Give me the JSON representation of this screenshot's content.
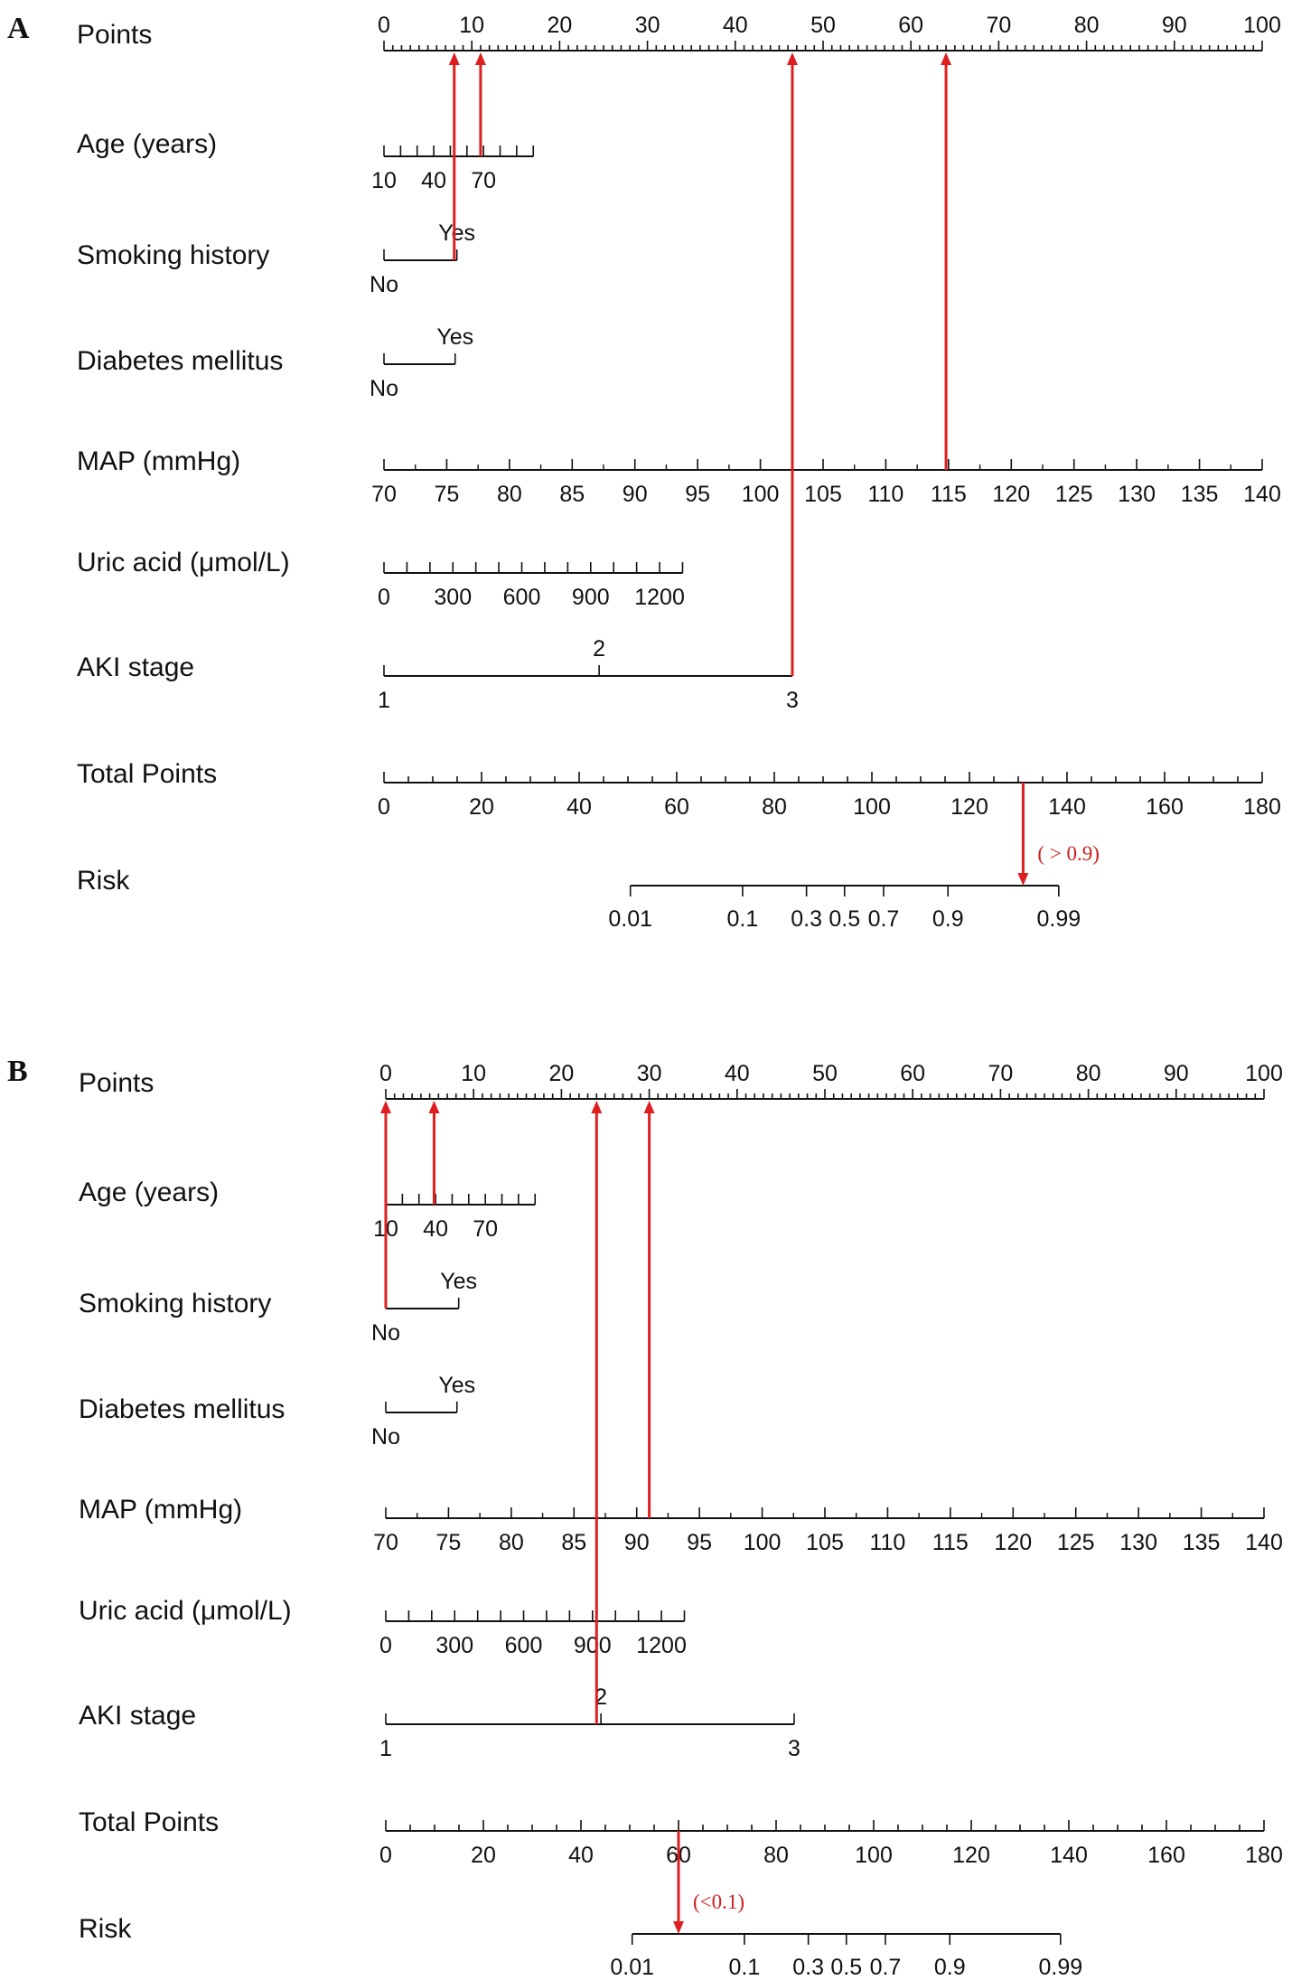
{
  "colors": {
    "axis": "#111111",
    "arrow": "#dd1f1f",
    "annotation": "#cc2020",
    "background": "#ffffff"
  },
  "chart_data": [
    {
      "type": "nomogram",
      "panel": "A",
      "rows": [
        {
          "id": "points",
          "label": "Points",
          "min": 0,
          "max": 100,
          "ticks": [
            "0",
            "10",
            "20",
            "30",
            "40",
            "50",
            "60",
            "70",
            "80",
            "90",
            "100"
          ]
        },
        {
          "id": "age",
          "label": "Age  (years)",
          "min": 10,
          "max": 100,
          "points_at_min": 0,
          "points_at_max": 17,
          "ticks": [
            "10",
            "40",
            "70"
          ]
        },
        {
          "id": "smoking",
          "label": "Smoking  history",
          "categories": [
            "No",
            "Yes"
          ],
          "points": [
            0,
            8.3
          ]
        },
        {
          "id": "diabetes",
          "label": "Diabetes  mellitus",
          "categories": [
            "No",
            "Yes"
          ],
          "points": [
            0,
            8.1
          ]
        },
        {
          "id": "map",
          "label": "MAP (mmHg)",
          "min": 70,
          "max": 140,
          "points_at_min": 0,
          "points_at_max": 100,
          "ticks": [
            "70",
            "75",
            "80",
            "85",
            "90",
            "95",
            "100",
            "105",
            "110",
            "115",
            "120",
            "125",
            "130",
            "135",
            "140"
          ]
        },
        {
          "id": "uric",
          "label": "Uric  acid (μmol/L)",
          "min": 0,
          "max": 1300,
          "points_at_min": 0,
          "points_at_max": 34,
          "ticks": [
            "0",
            "300",
            "600",
            "900",
            "1200"
          ]
        },
        {
          "id": "aki",
          "label": "AKI  stage",
          "categories": [
            "1",
            "2",
            "3"
          ],
          "points": [
            0,
            24.5,
            46.5
          ]
        },
        {
          "id": "total",
          "label": "Total Points",
          "min": 0,
          "max": 180,
          "ticks": [
            "0",
            "20",
            "40",
            "60",
            "80",
            "100",
            "120",
            "140",
            "160",
            "180"
          ]
        },
        {
          "id": "risk",
          "label": "Risk",
          "ticks": [
            "0.01",
            "0.1",
            "0.3",
            "0.5",
            "0.7",
            "0.9",
            "0.99"
          ],
          "tick_total_points": [
            50.5,
            73.5,
            86.6,
            94.4,
            102.4,
            115.6,
            138.3
          ]
        }
      ],
      "example": {
        "points_read": [
          8,
          11,
          46.5,
          64
        ],
        "total_points": 131,
        "risk_annotation": "( > 0.9)"
      }
    },
    {
      "type": "nomogram",
      "panel": "B",
      "rows": [
        {
          "id": "points",
          "label": "Points",
          "min": 0,
          "max": 100,
          "ticks": [
            "0",
            "10",
            "20",
            "30",
            "40",
            "50",
            "60",
            "70",
            "80",
            "90",
            "100"
          ]
        },
        {
          "id": "age",
          "label": "Age  (years)",
          "min": 10,
          "max": 100,
          "points_at_min": 0,
          "points_at_max": 17,
          "ticks": [
            "10",
            "40",
            "70"
          ]
        },
        {
          "id": "smoking",
          "label": "Smoking  history",
          "categories": [
            "No",
            "Yes"
          ],
          "points": [
            0,
            8.3
          ]
        },
        {
          "id": "diabetes",
          "label": "Diabetes  mellitus",
          "categories": [
            "No",
            "Yes"
          ],
          "points": [
            0,
            8.1
          ]
        },
        {
          "id": "map",
          "label": "MAP (mmHg)",
          "min": 70,
          "max": 140,
          "points_at_min": 0,
          "points_at_max": 100,
          "ticks": [
            "70",
            "75",
            "80",
            "85",
            "90",
            "95",
            "100",
            "105",
            "110",
            "115",
            "120",
            "125",
            "130",
            "135",
            "140"
          ]
        },
        {
          "id": "uric",
          "label": "Uric  acid (μmol/L)",
          "min": 0,
          "max": 1300,
          "points_at_min": 0,
          "points_at_max": 34,
          "ticks": [
            "0",
            "300",
            "600",
            "900",
            "1200"
          ]
        },
        {
          "id": "aki",
          "label": "AKI  stage",
          "categories": [
            "1",
            "2",
            "3"
          ],
          "points": [
            0,
            24.5,
            46.5
          ]
        },
        {
          "id": "total",
          "label": "Total Points",
          "min": 0,
          "max": 180,
          "ticks": [
            "0",
            "20",
            "40",
            "60",
            "80",
            "100",
            "120",
            "140",
            "160",
            "180"
          ]
        },
        {
          "id": "risk",
          "label": "Risk",
          "ticks": [
            "0.01",
            "0.1",
            "0.3",
            "0.5",
            "0.7",
            "0.9",
            "0.99"
          ],
          "tick_total_points": [
            50.5,
            73.5,
            86.6,
            94.4,
            102.4,
            115.6,
            138.3
          ]
        }
      ],
      "example": {
        "points_read": [
          0,
          5.5,
          24,
          30
        ],
        "total_points": 60,
        "risk_annotation": "(<0.1)"
      }
    }
  ]
}
